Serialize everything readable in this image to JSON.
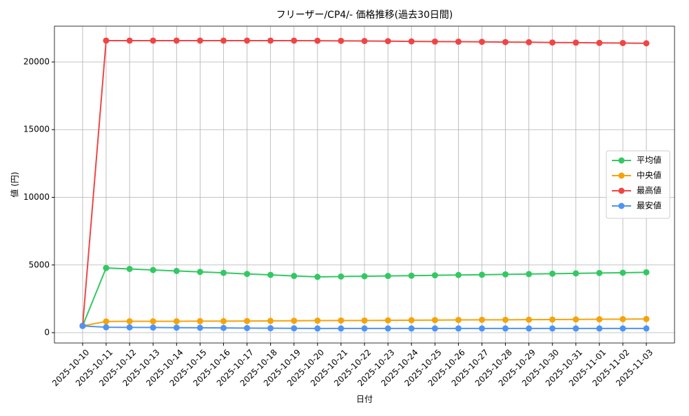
{
  "chart_data": {
    "type": "line",
    "title": "フリーザー/CP4/- 価格推移(過去30日間)",
    "x_label": "日付",
    "y_label": "値 (円)",
    "x": [
      "2025-10-10",
      "2025-10-11",
      "2025-10-12",
      "2025-10-13",
      "2025-10-14",
      "2025-10-15",
      "2025-10-16",
      "2025-10-17",
      "2025-10-18",
      "2025-10-19",
      "2025-10-20",
      "2025-10-21",
      "2025-10-22",
      "2025-10-23",
      "2025-10-24",
      "2025-10-25",
      "2025-10-26",
      "2025-10-27",
      "2025-10-28",
      "2025-10-29",
      "2025-10-30",
      "2025-10-31",
      "2025-11-01",
      "2025-11-02",
      "2025-11-03"
    ],
    "series": [
      {
        "name": "平均値",
        "color": "#33c863",
        "values": [
          500,
          4780,
          4710,
          4630,
          4560,
          4490,
          4420,
          4340,
          4270,
          4190,
          4120,
          4150,
          4170,
          4190,
          4210,
          4240,
          4260,
          4280,
          4310,
          4330,
          4360,
          4380,
          4410,
          4430,
          4460
        ]
      },
      {
        "name": "中央値",
        "color": "#f5a30b",
        "values": [
          500,
          830,
          840,
          840,
          840,
          850,
          850,
          860,
          870,
          880,
          890,
          900,
          900,
          910,
          920,
          930,
          940,
          950,
          950,
          960,
          970,
          980,
          990,
          1000,
          1010
        ]
      },
      {
        "name": "最高値",
        "color": "#ef4545",
        "values": [
          500,
          21580,
          21580,
          21580,
          21580,
          21580,
          21580,
          21580,
          21580,
          21580,
          21570,
          21560,
          21550,
          21540,
          21520,
          21510,
          21500,
          21490,
          21470,
          21460,
          21440,
          21430,
          21410,
          21400,
          21380
        ]
      },
      {
        "name": "最安値",
        "color": "#4d94f2",
        "values": [
          500,
          400,
          390,
          380,
          370,
          360,
          350,
          340,
          330,
          320,
          310,
          310,
          310,
          310,
          310,
          310,
          310,
          310,
          310,
          310,
          310,
          310,
          310,
          310,
          310
        ]
      }
    ],
    "ylim": [
      -763,
      22646
    ],
    "yticks": [
      0,
      5000,
      10000,
      15000,
      20000
    ],
    "grid": true,
    "legend": "right"
  }
}
